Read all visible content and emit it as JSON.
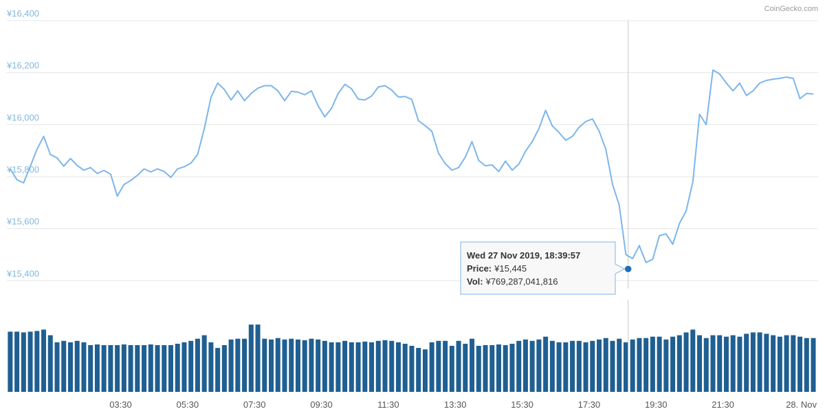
{
  "chart_data": {
    "type": "line",
    "credit": "CoinGecko.com",
    "x": [
      0.2,
      0.4,
      0.6,
      0.8,
      1.0,
      1.2,
      1.4,
      1.6,
      1.8,
      2.0,
      2.2,
      2.4,
      2.6,
      2.8,
      3.0,
      3.2,
      3.4,
      3.6,
      3.8,
      4.0,
      4.2,
      4.4,
      4.6,
      4.8,
      5.0,
      5.2,
      5.4,
      5.6,
      5.8,
      6.0,
      6.2,
      6.4,
      6.6,
      6.8,
      7.0,
      7.2,
      7.4,
      7.6,
      7.8,
      8.0,
      8.2,
      8.4,
      8.6,
      8.8,
      9.0,
      9.2,
      9.4,
      9.6,
      9.8,
      10.0,
      10.2,
      10.4,
      10.6,
      10.8,
      11.0,
      11.2,
      11.4,
      11.6,
      11.8,
      12.0,
      12.2,
      12.4,
      12.6,
      12.8,
      13.0,
      13.2,
      13.4,
      13.6,
      13.8,
      14.0,
      14.2,
      14.4,
      14.6,
      14.8,
      15.0,
      15.2,
      15.4,
      15.6,
      15.8,
      16.0,
      16.2,
      16.4,
      16.6,
      16.8,
      17.0,
      17.2,
      17.4,
      17.6,
      17.8,
      18.0,
      18.2,
      18.4,
      18.6,
      18.8,
      19.0,
      19.2,
      19.4,
      19.6,
      19.8,
      20.0,
      20.2,
      20.4,
      20.6,
      20.8,
      21.0,
      21.2,
      21.4,
      21.6,
      21.8,
      22.0,
      22.2,
      22.4,
      22.6,
      22.8,
      23.0,
      23.2,
      23.4,
      23.6,
      23.8,
      24.0,
      24.2
    ],
    "price": {
      "color": "#7cb5ec",
      "values": [
        15830,
        15788,
        15776,
        15840,
        15905,
        15955,
        15885,
        15872,
        15840,
        15870,
        15843,
        15825,
        15835,
        15812,
        15824,
        15810,
        15725,
        15770,
        15785,
        15805,
        15830,
        15818,
        15830,
        15820,
        15797,
        15830,
        15838,
        15852,
        15885,
        15985,
        16105,
        16160,
        16135,
        16095,
        16130,
        16092,
        16120,
        16140,
        16150,
        16150,
        16130,
        16092,
        16128,
        16125,
        16115,
        16130,
        16073,
        16030,
        16062,
        16120,
        16155,
        16138,
        16098,
        16095,
        16110,
        16145,
        16150,
        16133,
        16106,
        16108,
        16097,
        16015,
        15996,
        15975,
        15890,
        15850,
        15825,
        15835,
        15875,
        15935,
        15862,
        15842,
        15845,
        15820,
        15860,
        15825,
        15848,
        15898,
        15935,
        15985,
        16055,
        15995,
        15970,
        15940,
        15955,
        15990,
        16012,
        16022,
        15975,
        15905,
        15770,
        15690,
        15500,
        15485,
        15535,
        15470,
        15482,
        15573,
        15580,
        15540,
        15620,
        15668,
        15780,
        16040,
        16000,
        16210,
        16195,
        16160,
        16130,
        16160,
        16112,
        16130,
        16160,
        16170,
        16175,
        16178,
        16183,
        16178,
        16100,
        16120,
        16118
      ]
    },
    "volume": {
      "color": "#1f5f91",
      "ylim": [
        0,
        1400000000000.0
      ],
      "values": [
        876000000000.0,
        876000000000.0,
        865000000000.0,
        876000000000.0,
        886000000000.0,
        906000000000.0,
        824000000000.0,
        721000000000.0,
        742000000000.0,
        721000000000.0,
        742000000000.0,
        721000000000.0,
        680000000000.0,
        690000000000.0,
        680000000000.0,
        680000000000.0,
        680000000000.0,
        690000000000.0,
        680000000000.0,
        680000000000.0,
        680000000000.0,
        690000000000.0,
        680000000000.0,
        680000000000.0,
        680000000000.0,
        700000000000.0,
        721000000000.0,
        742000000000.0,
        773000000000.0,
        824000000000.0,
        721000000000.0,
        639000000000.0,
        680000000000.0,
        762000000000.0,
        773000000000.0,
        773000000000.0,
        979000000000.0,
        979000000000.0,
        773000000000.0,
        762000000000.0,
        783000000000.0,
        762000000000.0,
        773000000000.0,
        762000000000.0,
        752000000000.0,
        773000000000.0,
        762000000000.0,
        742000000000.0,
        721000000000.0,
        721000000000.0,
        742000000000.0,
        721000000000.0,
        721000000000.0,
        731000000000.0,
        721000000000.0,
        742000000000.0,
        752000000000.0,
        742000000000.0,
        721000000000.0,
        700000000000.0,
        670000000000.0,
        639000000000.0,
        618000000000.0,
        721000000000.0,
        742000000000.0,
        742000000000.0,
        670000000000.0,
        742000000000.0,
        700000000000.0,
        773000000000.0,
        670000000000.0,
        680000000000.0,
        680000000000.0,
        690000000000.0,
        680000000000.0,
        700000000000.0,
        742000000000.0,
        762000000000.0,
        742000000000.0,
        762000000000.0,
        803000000000.0,
        742000000000.0,
        721000000000.0,
        721000000000.0,
        742000000000.0,
        742000000000.0,
        721000000000.0,
        742000000000.0,
        762000000000.0,
        783000000000.0,
        742000000000.0,
        773000000000.0,
        721000000000.0,
        762000000000.0,
        783000000000.0,
        783000000000.0,
        803000000000.0,
        803000000000.0,
        762000000000.0,
        803000000000.0,
        824000000000.0,
        865000000000.0,
        906000000000.0,
        824000000000.0,
        783000000000.0,
        824000000000.0,
        824000000000.0,
        803000000000.0,
        824000000000.0,
        803000000000.0,
        845000000000.0,
        865000000000.0,
        865000000000.0,
        845000000000.0,
        824000000000.0,
        803000000000.0,
        824000000000.0,
        824000000000.0,
        803000000000.0,
        783000000000.0,
        783000000000.0
      ]
    },
    "xlim": [
      0.1,
      24.2
    ],
    "xticks": [
      {
        "value": 3.5,
        "label": "03:30"
      },
      {
        "value": 5.5,
        "label": "05:30"
      },
      {
        "value": 7.5,
        "label": "07:30"
      },
      {
        "value": 9.5,
        "label": "09:30"
      },
      {
        "value": 11.5,
        "label": "11:30"
      },
      {
        "value": 13.5,
        "label": "13:30"
      },
      {
        "value": 15.5,
        "label": "15:30"
      },
      {
        "value": 17.5,
        "label": "17:30"
      },
      {
        "value": 19.5,
        "label": "19:30"
      },
      {
        "value": 21.5,
        "label": "21:30"
      },
      {
        "value": 24,
        "label": "28. Nov"
      }
    ],
    "ylim": [
      15370,
      16400
    ],
    "yticks": [
      {
        "value": 15400,
        "label": "¥15,400"
      },
      {
        "value": 15600,
        "label": "¥15,600"
      },
      {
        "value": 15800,
        "label": "¥15,800"
      },
      {
        "value": 16000,
        "label": "¥16,000"
      },
      {
        "value": 16200,
        "label": "¥16,200"
      },
      {
        "value": 16400,
        "label": "¥16,400"
      }
    ],
    "grid": true,
    "tooltip": {
      "x": 18.666,
      "title": "Wed 27 Nov 2019, 18:39:57",
      "rows": [
        {
          "label": "Price:",
          "value": 15445,
          "value_label": "¥15,445"
        },
        {
          "label": "Vol:",
          "value": 769287041816,
          "value_label": "¥769,287,041,816"
        }
      ]
    }
  }
}
